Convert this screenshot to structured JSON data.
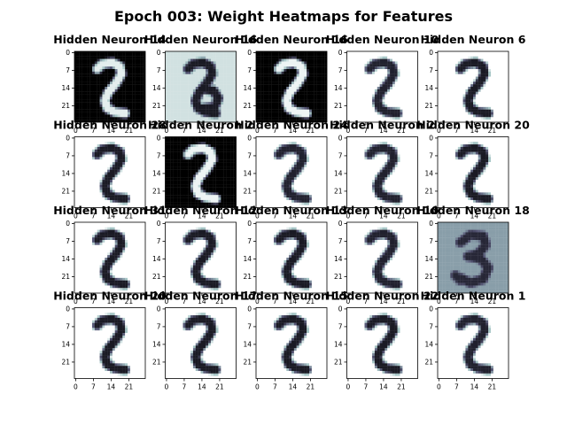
{
  "chart_data": {
    "type": "heatmap",
    "title": "Epoch 003: Weight Heatmaps for Features",
    "grid": {
      "rows": 4,
      "cols": 5
    },
    "image_size": [
      28,
      28
    ],
    "colormap": "bone",
    "xticks": [
      "0",
      "7",
      "14",
      "21"
    ],
    "yticks": [
      "0",
      "7",
      "14",
      "21"
    ],
    "panels": [
      {
        "title": "Hidden Neuron 14",
        "digit": "two",
        "background": 0.0,
        "ink": 0.92
      },
      {
        "title": "Hidden Neuron 16",
        "digit": "twoThree",
        "background": 0.87,
        "ink": 0.12
      },
      {
        "title": "Hidden Neuron 16",
        "digit": "two",
        "background": 0.0,
        "ink": 0.95
      },
      {
        "title": "Hidden Neuron 10",
        "digit": "two",
        "background": 1.0,
        "ink": 0.15
      },
      {
        "title": "Hidden Neuron 6",
        "digit": "two",
        "background": 1.0,
        "ink": 0.12
      },
      {
        "title": "Hidden Neuron 28",
        "digit": "two",
        "background": 1.0,
        "ink": 0.12
      },
      {
        "title": "Hidden Neuron 2",
        "digit": "two",
        "background": 0.0,
        "ink": 0.95
      },
      {
        "title": "Hidden Neuron 24",
        "digit": "two",
        "background": 1.0,
        "ink": 0.15
      },
      {
        "title": "Hidden Neuron 2",
        "digit": "two",
        "background": 1.0,
        "ink": 0.15
      },
      {
        "title": "Hidden Neuron 20",
        "digit": "two",
        "background": 1.0,
        "ink": 0.12
      },
      {
        "title": "Hidden Neuron 31",
        "digit": "two",
        "background": 1.0,
        "ink": 0.12
      },
      {
        "title": "Hidden Neuron 12",
        "digit": "two",
        "background": 1.0,
        "ink": 0.12
      },
      {
        "title": "Hidden Neuron 13",
        "digit": "two",
        "background": 1.0,
        "ink": 0.12
      },
      {
        "title": "Hidden Neuron 10",
        "digit": "two",
        "background": 1.0,
        "ink": 0.15
      },
      {
        "title": "Hidden Neuron 18",
        "digit": "three",
        "background": 0.62,
        "ink": 0.18
      },
      {
        "title": "Hidden Neuron 20",
        "digit": "two",
        "background": 1.0,
        "ink": 0.12
      },
      {
        "title": "Hidden Neuron 17",
        "digit": "two",
        "background": 1.0,
        "ink": 0.12
      },
      {
        "title": "Hidden Neuron 15",
        "digit": "two",
        "background": 1.0,
        "ink": 0.12
      },
      {
        "title": "Hidden Neuron 22",
        "digit": "two",
        "background": 1.0,
        "ink": 0.12
      },
      {
        "title": "Hidden Neuron 1",
        "digit": "two",
        "background": 1.0,
        "ink": 0.15
      }
    ]
  }
}
